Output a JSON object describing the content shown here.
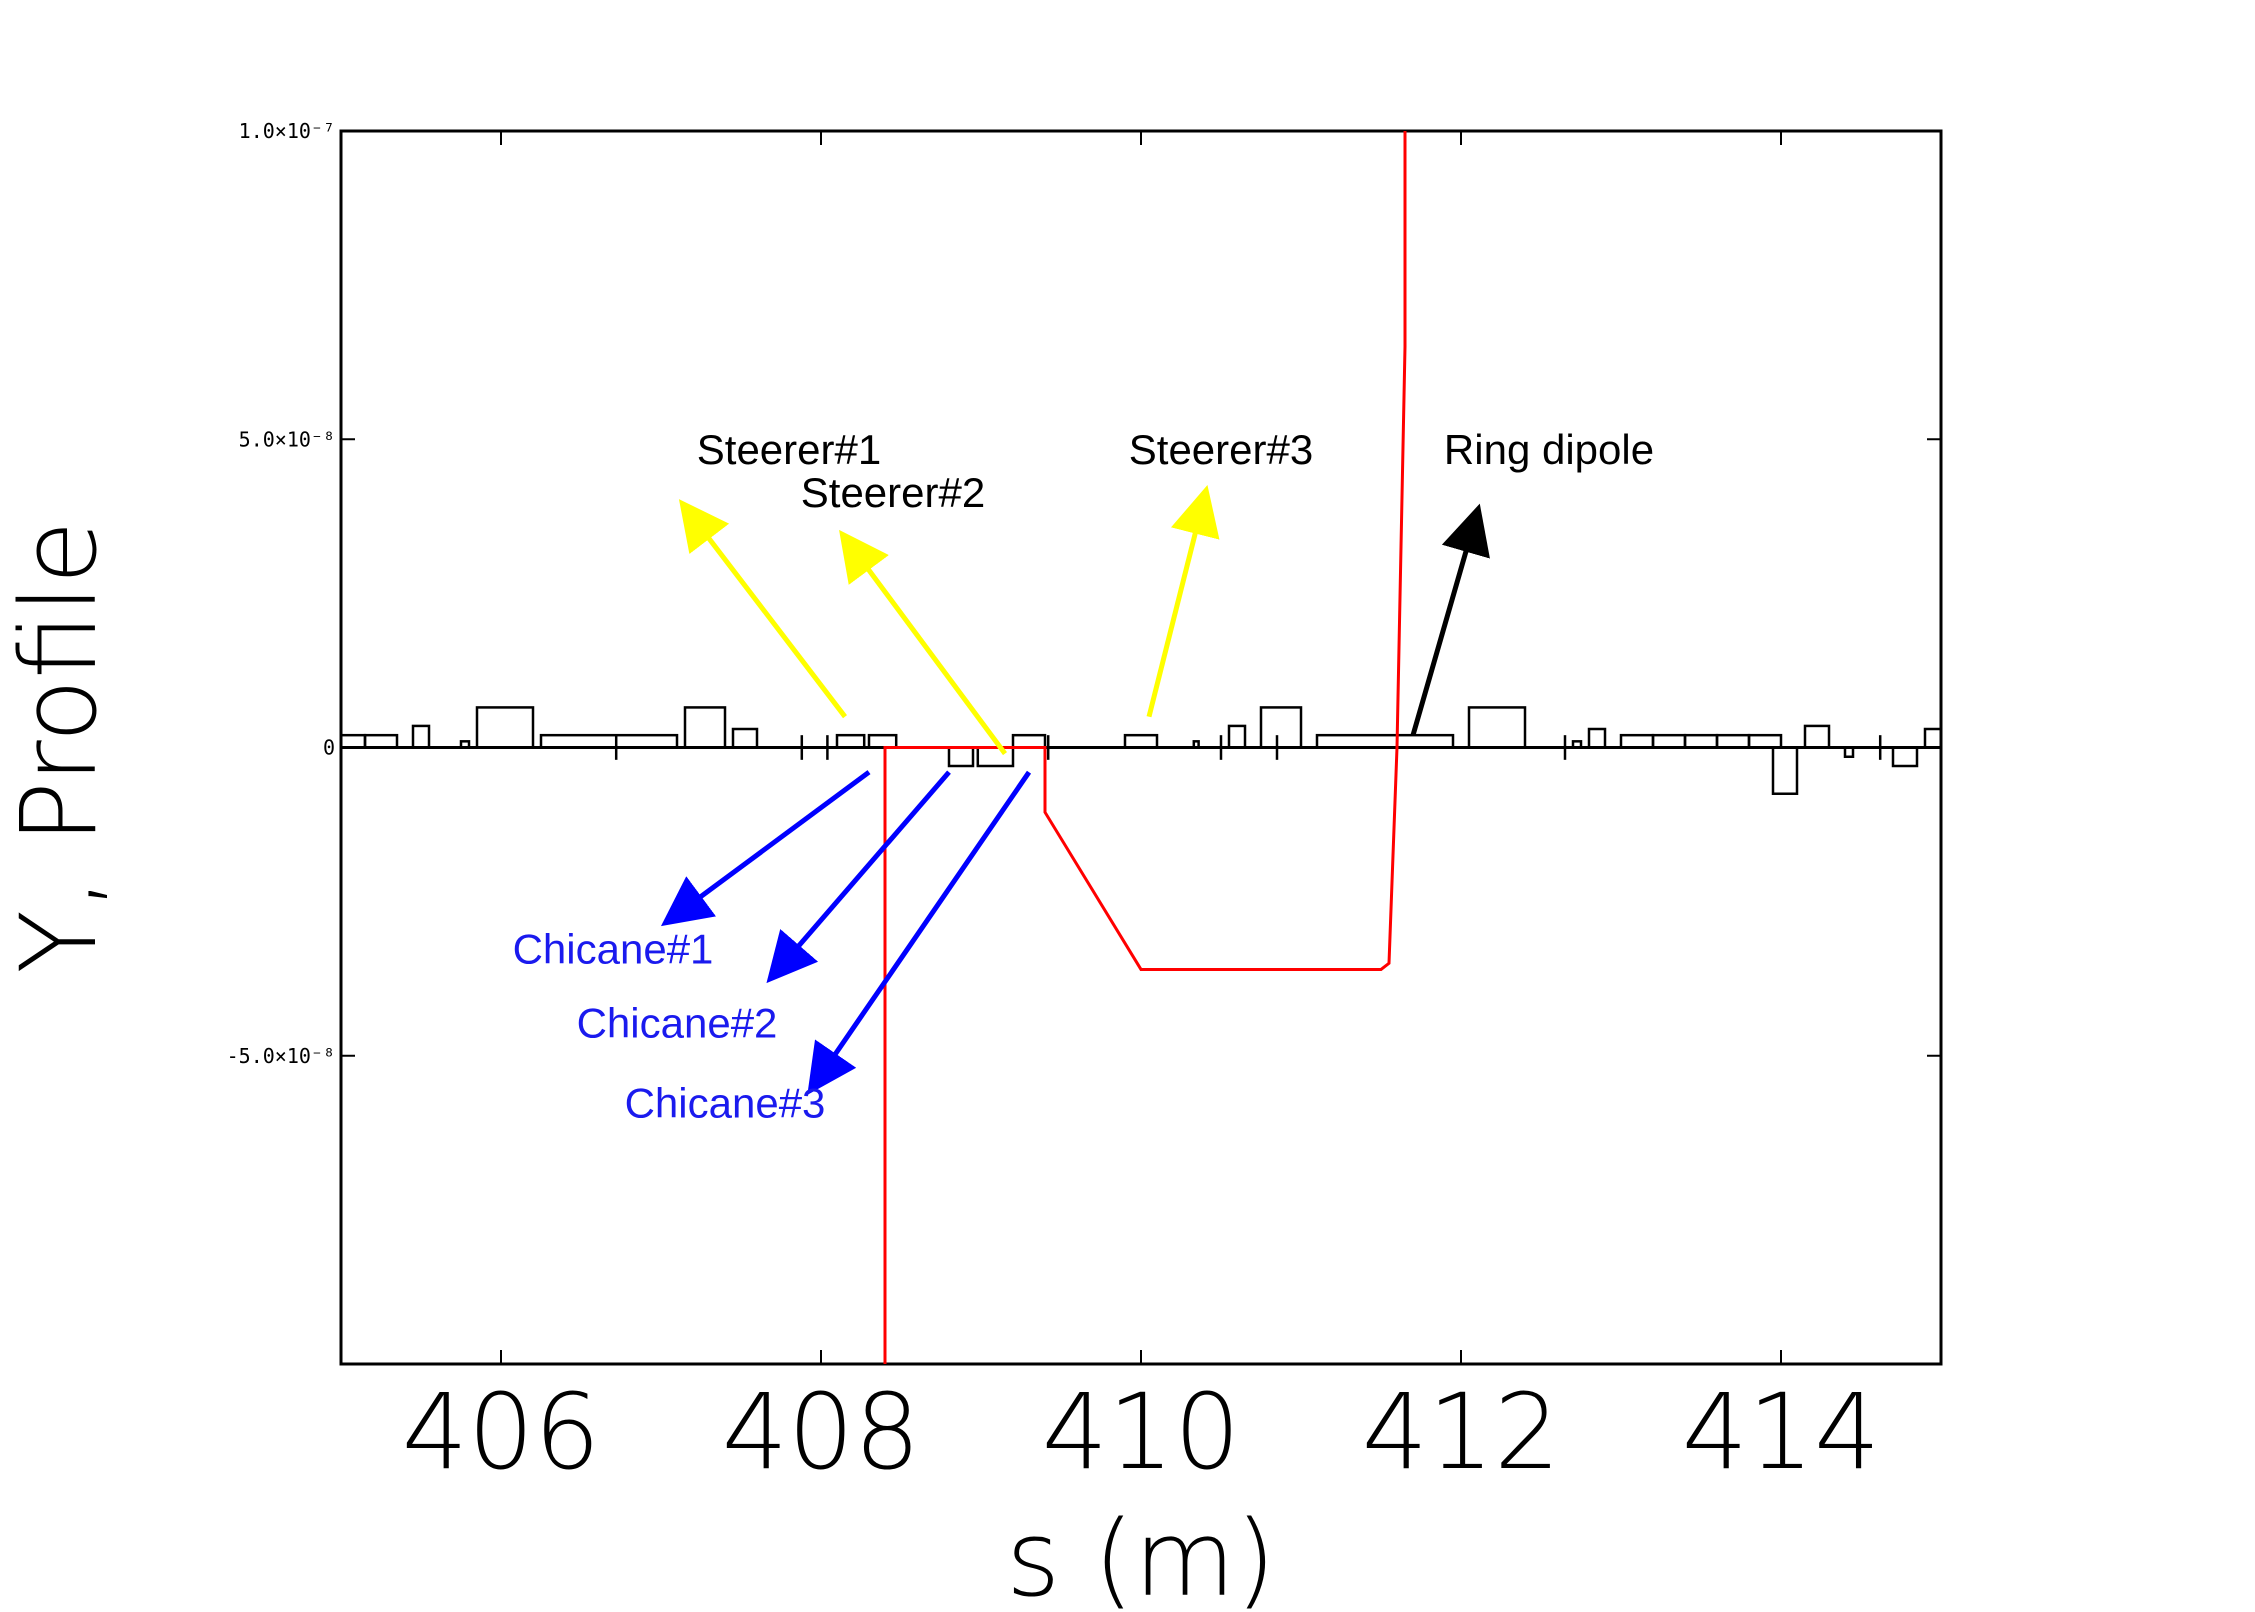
{
  "chart_data": {
    "type": "line",
    "xlabel": "s (m)",
    "ylabel": "Y, Profile",
    "xlim": [
      405,
      415
    ],
    "ylim": [
      -1e-07,
      1e-07
    ],
    "x_ticks": [
      406,
      408,
      410,
      412,
      414
    ],
    "x_tick_labels": [
      "406",
      "408",
      "410",
      "412",
      "414"
    ],
    "y_ticks": [
      -5e-08,
      0,
      5e-08,
      1e-07
    ],
    "y_tick_labels": [
      "-5.0×10⁻⁸",
      "0",
      "5.0×10⁻⁸",
      "1.0×10⁻⁷"
    ],
    "grid": false,
    "series": [
      {
        "color": "#ff0000",
        "x": [
          408.4,
          408.4,
          409.4,
          409.4,
          410.0,
          411.5,
          411.55,
          411.6,
          411.65,
          411.65
        ],
        "y": [
          -1e-07,
          0,
          0,
          -1.05e-08,
          -3.6e-08,
          -3.6e-08,
          -3.5e-08,
          0,
          6.5e-08,
          1e-07
        ]
      }
    ],
    "lattice": {
      "color": "#000000",
      "elements": [
        {
          "s0": 405.0,
          "s1": 405.15,
          "h": 2e-09
        },
        {
          "s0": 405.15,
          "s1": 405.35,
          "h": 2e-09
        },
        {
          "s0": 405.45,
          "s1": 405.55,
          "h": 3.5e-09
        },
        {
          "s0": 405.75,
          "s1": 405.8,
          "h": 1e-09
        },
        {
          "s0": 405.85,
          "s1": 406.2,
          "h": 6.5e-09
        },
        {
          "s0": 406.25,
          "s1": 407.1,
          "h": 2e-09
        },
        {
          "s0": 407.15,
          "s1": 407.4,
          "h": 6.5e-09
        },
        {
          "s0": 407.45,
          "s1": 407.6,
          "h": 3e-09
        },
        {
          "s0": 408.1,
          "s1": 408.27,
          "h": 2e-09
        },
        {
          "s0": 408.3,
          "s1": 408.47,
          "h": 2e-09
        },
        {
          "s0": 408.8,
          "s1": 408.95,
          "h": -3e-09
        },
        {
          "s0": 408.98,
          "s1": 409.2,
          "h": -3e-09
        },
        {
          "s0": 409.2,
          "s1": 409.4,
          "h": 2e-09
        },
        {
          "s0": 409.9,
          "s1": 410.1,
          "h": 2e-09
        },
        {
          "s0": 410.33,
          "s1": 410.36,
          "h": 1e-09
        },
        {
          "s0": 410.55,
          "s1": 410.65,
          "h": 3.5e-09
        },
        {
          "s0": 410.75,
          "s1": 411.0,
          "h": 6.5e-09
        },
        {
          "s0": 411.1,
          "s1": 411.95,
          "h": 2e-09
        },
        {
          "s0": 412.05,
          "s1": 412.4,
          "h": 6.5e-09
        },
        {
          "s0": 412.7,
          "s1": 412.75,
          "h": 1e-09
        },
        {
          "s0": 412.8,
          "s1": 412.9,
          "h": 3e-09
        },
        {
          "s0": 413.0,
          "s1": 413.2,
          "h": 2e-09
        },
        {
          "s0": 413.2,
          "s1": 413.4,
          "h": 2e-09
        },
        {
          "s0": 413.4,
          "s1": 413.6,
          "h": 2e-09
        },
        {
          "s0": 413.6,
          "s1": 413.8,
          "h": 2e-09
        },
        {
          "s0": 413.8,
          "s1": 414.0,
          "h": 2e-09
        },
        {
          "s0": 413.95,
          "s1": 414.1,
          "h": -7.5e-09
        },
        {
          "s0": 414.15,
          "s1": 414.3,
          "h": 3.5e-09
        },
        {
          "s0": 414.4,
          "s1": 414.45,
          "h": -1.5e-09
        },
        {
          "s0": 414.7,
          "s1": 414.85,
          "h": -3e-09
        },
        {
          "s0": 414.9,
          "s1": 415.0,
          "h": 3e-09
        }
      ],
      "markers": [
        406.72,
        407.88,
        408.04,
        409.42,
        410.5,
        410.85,
        412.65,
        414.62
      ]
    },
    "annotations": [
      {
        "text": "Steerer#1",
        "color": "#000000",
        "arrow_color": "#ffff00",
        "from": [
          408.15,
          5e-09
        ],
        "to": [
          407.15,
          3.9e-08
        ],
        "label_at": [
          407.8,
          4.6e-08
        ]
      },
      {
        "text": "Steerer#2",
        "color": "#000000",
        "arrow_color": "#ffff00",
        "from": [
          409.15,
          -1e-09
        ],
        "to": [
          408.15,
          3.4e-08
        ],
        "label_at": [
          408.45,
          3.9e-08
        ]
      },
      {
        "text": "Steerer#3",
        "color": "#000000",
        "arrow_color": "#ffff00",
        "from": [
          410.05,
          5e-09
        ],
        "to": [
          410.4,
          4.1e-08
        ],
        "label_at": [
          410.5,
          4.6e-08
        ]
      },
      {
        "text": "Ring dipole",
        "color": "#000000",
        "arrow_color": "#000000",
        "from": [
          411.7,
          2e-09
        ],
        "to": [
          412.1,
          3.8e-08
        ],
        "label_at": [
          412.55,
          4.6e-08
        ]
      },
      {
        "text": "Chicane#1",
        "color": "#1a1aee",
        "arrow_color": "#0000ff",
        "from": [
          408.3,
          -4e-09
        ],
        "to": [
          407.05,
          -2.8e-08
        ],
        "label_at": [
          406.7,
          -3.5e-08
        ]
      },
      {
        "text": "Chicane#2",
        "color": "#1a1aee",
        "arrow_color": "#0000ff",
        "from": [
          408.8,
          -4e-09
        ],
        "to": [
          407.7,
          -3.7e-08
        ],
        "label_at": [
          407.1,
          -4.7e-08
        ]
      },
      {
        "text": "Chicane#3",
        "color": "#1a1aee",
        "arrow_color": "#0000ff",
        "from": [
          409.3,
          -4e-09
        ],
        "to": [
          407.95,
          -5.5e-08
        ],
        "label_at": [
          407.4,
          -6e-08
        ]
      }
    ]
  }
}
